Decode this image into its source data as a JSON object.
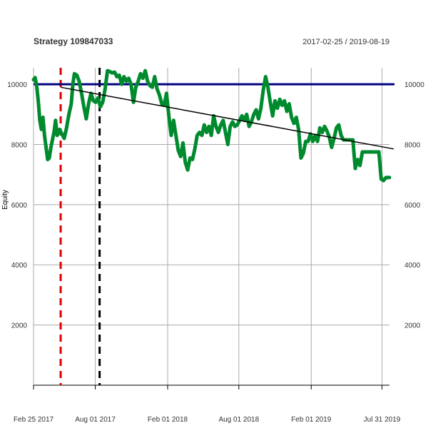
{
  "chart_data": {
    "type": "line",
    "title": "Strategy 109847033",
    "date_range": "2017-02-25 / 2019-08-19",
    "ylabel": "Equity",
    "ylim": [
      0,
      10500
    ],
    "xlim": [
      "2017-02-25",
      "2019-08-19"
    ],
    "y_ticks": [
      2000,
      4000,
      6000,
      8000,
      10000
    ],
    "x_ticks": [
      {
        "date": "2017-02-25",
        "label": "Feb 25 2017"
      },
      {
        "date": "2017-08-01",
        "label": "Aug 01 2017"
      },
      {
        "date": "2018-02-01",
        "label": "Feb 01 2018"
      },
      {
        "date": "2018-08-01",
        "label": "Aug 01 2018"
      },
      {
        "date": "2019-02-01",
        "label": "Feb 01 2019"
      },
      {
        "date": "2019-07-31",
        "label": "Jul 31 2019"
      }
    ],
    "grid": true,
    "series": [
      {
        "color": "#008a2e",
        "points": [
          [
            "2017-02-25",
            10150
          ],
          [
            "2017-03-01",
            10220
          ],
          [
            "2017-03-05",
            9950
          ],
          [
            "2017-03-09",
            9450
          ],
          [
            "2017-03-13",
            8800
          ],
          [
            "2017-03-17",
            8500
          ],
          [
            "2017-03-21",
            8900
          ],
          [
            "2017-03-25",
            8300
          ],
          [
            "2017-03-29",
            7900
          ],
          [
            "2017-04-02",
            7500
          ],
          [
            "2017-04-06",
            7550
          ],
          [
            "2017-04-10",
            7900
          ],
          [
            "2017-04-14",
            8150
          ],
          [
            "2017-04-18",
            8400
          ],
          [
            "2017-04-22",
            8800
          ],
          [
            "2017-04-26",
            8300
          ],
          [
            "2017-05-02",
            8500
          ],
          [
            "2017-05-08",
            8350
          ],
          [
            "2017-05-14",
            8200
          ],
          [
            "2017-05-20",
            8550
          ],
          [
            "2017-05-26",
            9000
          ],
          [
            "2017-06-01",
            9350
          ],
          [
            "2017-06-05",
            10000
          ],
          [
            "2017-06-09",
            10350
          ],
          [
            "2017-06-15",
            10300
          ],
          [
            "2017-06-21",
            10100
          ],
          [
            "2017-06-27",
            9700
          ],
          [
            "2017-07-03",
            9250
          ],
          [
            "2017-07-09",
            8850
          ],
          [
            "2017-07-15",
            9350
          ],
          [
            "2017-07-21",
            9700
          ],
          [
            "2017-07-27",
            9450
          ],
          [
            "2017-08-02",
            9400
          ],
          [
            "2017-08-08",
            9550
          ],
          [
            "2017-08-14",
            9250
          ],
          [
            "2017-08-20",
            9400
          ],
          [
            "2017-08-26",
            9850
          ],
          [
            "2017-09-01",
            10450
          ],
          [
            "2017-09-07",
            10420
          ],
          [
            "2017-09-13",
            10380
          ],
          [
            "2017-09-19",
            10400
          ],
          [
            "2017-09-25",
            10250
          ],
          [
            "2017-10-01",
            10300
          ],
          [
            "2017-10-07",
            10000
          ],
          [
            "2017-10-13",
            10250
          ],
          [
            "2017-10-19",
            10100
          ],
          [
            "2017-10-25",
            10200
          ],
          [
            "2017-10-31",
            10000
          ],
          [
            "2017-11-06",
            9400
          ],
          [
            "2017-11-12",
            9900
          ],
          [
            "2017-11-18",
            10100
          ],
          [
            "2017-11-24",
            10350
          ],
          [
            "2017-11-30",
            10200
          ],
          [
            "2017-12-06",
            10450
          ],
          [
            "2017-12-12",
            10100
          ],
          [
            "2017-12-18",
            9950
          ],
          [
            "2017-12-24",
            9900
          ],
          [
            "2017-12-30",
            10250
          ],
          [
            "2018-01-05",
            9850
          ],
          [
            "2018-01-11",
            9650
          ],
          [
            "2018-01-17",
            9350
          ],
          [
            "2018-01-23",
            9300
          ],
          [
            "2018-01-29",
            9700
          ],
          [
            "2018-02-04",
            8950
          ],
          [
            "2018-02-10",
            8300
          ],
          [
            "2018-02-16",
            8800
          ],
          [
            "2018-02-22",
            8300
          ],
          [
            "2018-02-28",
            7800
          ],
          [
            "2018-03-06",
            7600
          ],
          [
            "2018-03-12",
            8050
          ],
          [
            "2018-03-18",
            7400
          ],
          [
            "2018-03-24",
            7150
          ],
          [
            "2018-03-30",
            7550
          ],
          [
            "2018-04-05",
            7500
          ],
          [
            "2018-04-11",
            7850
          ],
          [
            "2018-04-17",
            8300
          ],
          [
            "2018-04-23",
            8400
          ],
          [
            "2018-04-29",
            8300
          ],
          [
            "2018-05-05",
            8650
          ],
          [
            "2018-05-11",
            8400
          ],
          [
            "2018-05-17",
            8600
          ],
          [
            "2018-05-23",
            8300
          ],
          [
            "2018-05-29",
            8950
          ],
          [
            "2018-06-04",
            8600
          ],
          [
            "2018-06-10",
            8400
          ],
          [
            "2018-06-16",
            8650
          ],
          [
            "2018-06-22",
            8800
          ],
          [
            "2018-06-28",
            8400
          ],
          [
            "2018-07-04",
            8000
          ],
          [
            "2018-07-10",
            8600
          ],
          [
            "2018-07-16",
            8750
          ],
          [
            "2018-07-22",
            8600
          ],
          [
            "2018-07-28",
            8650
          ],
          [
            "2018-08-03",
            8800
          ],
          [
            "2018-08-09",
            8950
          ],
          [
            "2018-08-15",
            8800
          ],
          [
            "2018-08-21",
            9000
          ],
          [
            "2018-08-27",
            8600
          ],
          [
            "2018-09-02",
            8750
          ],
          [
            "2018-09-08",
            9000
          ],
          [
            "2018-09-14",
            9150
          ],
          [
            "2018-09-20",
            8850
          ],
          [
            "2018-09-26",
            9200
          ],
          [
            "2018-10-02",
            9800
          ],
          [
            "2018-10-08",
            10250
          ],
          [
            "2018-10-14",
            9900
          ],
          [
            "2018-10-20",
            9400
          ],
          [
            "2018-10-26",
            8950
          ],
          [
            "2018-11-01",
            9450
          ],
          [
            "2018-11-07",
            9200
          ],
          [
            "2018-11-13",
            9500
          ],
          [
            "2018-11-19",
            9300
          ],
          [
            "2018-11-25",
            9450
          ],
          [
            "2018-12-01",
            9100
          ],
          [
            "2018-12-07",
            9350
          ],
          [
            "2018-12-13",
            8900
          ],
          [
            "2018-12-19",
            8700
          ],
          [
            "2018-12-25",
            8900
          ],
          [
            "2018-12-31",
            8500
          ],
          [
            "2019-01-06",
            7550
          ],
          [
            "2019-01-12",
            7700
          ],
          [
            "2019-01-18",
            8100
          ],
          [
            "2019-01-24",
            8100
          ],
          [
            "2019-01-30",
            8350
          ],
          [
            "2019-02-05",
            8100
          ],
          [
            "2019-02-11",
            8300
          ],
          [
            "2019-02-17",
            8100
          ],
          [
            "2019-02-23",
            8550
          ],
          [
            "2019-03-01",
            8400
          ],
          [
            "2019-03-07",
            8600
          ],
          [
            "2019-03-13",
            8450
          ],
          [
            "2019-03-19",
            8250
          ],
          [
            "2019-03-25",
            7900
          ],
          [
            "2019-03-31",
            8200
          ],
          [
            "2019-04-06",
            8550
          ],
          [
            "2019-04-12",
            8650
          ],
          [
            "2019-04-18",
            8300
          ],
          [
            "2019-04-24",
            8150
          ],
          [
            "2019-04-30",
            8150
          ],
          [
            "2019-05-06",
            8150
          ],
          [
            "2019-05-12",
            8150
          ],
          [
            "2019-05-18",
            8150
          ],
          [
            "2019-05-24",
            7200
          ],
          [
            "2019-05-30",
            7500
          ],
          [
            "2019-06-05",
            7300
          ],
          [
            "2019-06-11",
            7750
          ],
          [
            "2019-06-17",
            7750
          ],
          [
            "2019-06-23",
            7750
          ],
          [
            "2019-06-29",
            7750
          ],
          [
            "2019-07-05",
            7750
          ],
          [
            "2019-07-11",
            7750
          ],
          [
            "2019-07-17",
            7750
          ],
          [
            "2019-07-23",
            7750
          ],
          [
            "2019-07-29",
            6850
          ],
          [
            "2019-08-04",
            6800
          ],
          [
            "2019-08-10",
            6900
          ],
          [
            "2019-08-19",
            6900
          ]
        ]
      }
    ],
    "reference_line": {
      "y": 10000,
      "color": "#000080"
    },
    "trend_line": {
      "from": [
        "2017-05-05",
        9900
      ],
      "to": [
        "2019-08-19",
        7850
      ],
      "color": "#000000"
    },
    "vertical_markers": [
      {
        "date": "2017-05-05",
        "color": "#dd0000"
      },
      {
        "date": "2017-08-12",
        "color": "#000000"
      }
    ]
  }
}
